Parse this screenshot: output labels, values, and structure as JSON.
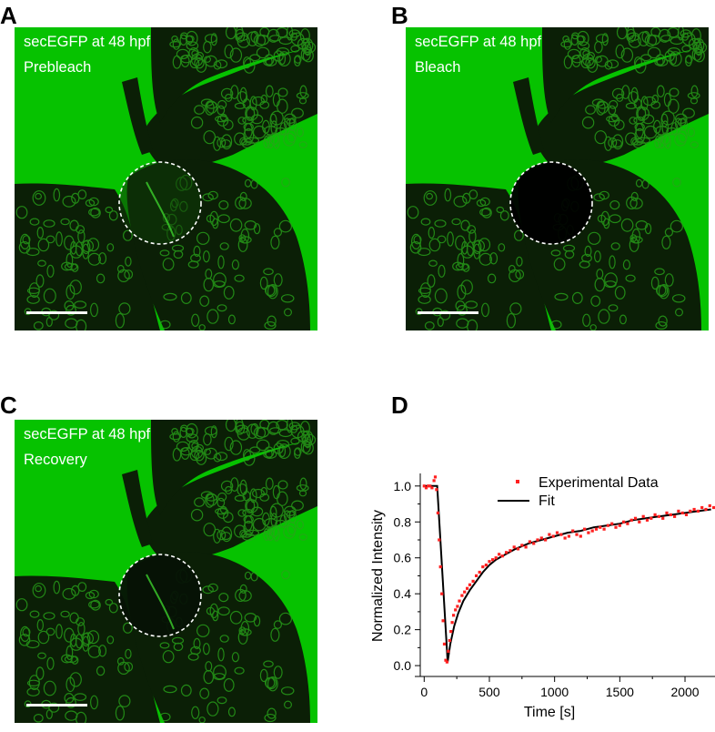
{
  "panels": [
    {
      "letter": "A",
      "line1": "secEGFP at 48 hpf",
      "line2": "Prebleach",
      "state": "prebleach"
    },
    {
      "letter": "B",
      "line1": "secEGFP at 48 hpf",
      "line2": "Bleach",
      "state": "bleach"
    },
    {
      "letter": "C",
      "line1": "secEGFP at 48 hpf",
      "line2": "Recovery",
      "state": "recovery"
    },
    {
      "letter": "D"
    }
  ],
  "colors": {
    "gfp": "#06c200",
    "tissue": "#0b1f06",
    "membrane": "#28a31a",
    "data": "#ff2020",
    "fit": "#000000"
  },
  "chart_data": {
    "type": "scatter",
    "xlabel": "Time [s]",
    "ylabel": "Normalized Intensity",
    "xlim": [
      -30,
      2230
    ],
    "ylim": [
      -0.03,
      1.07
    ],
    "xticks": [
      "0",
      "500",
      "1000",
      "1500",
      "2000"
    ],
    "yticks": [
      "0.0",
      "0.2",
      "0.4",
      "0.6",
      "0.8",
      "1.0"
    ],
    "legend_position": "top-right",
    "series": [
      {
        "name": "Experimental Data",
        "style": "dots",
        "x": [
          0,
          15,
          30,
          45,
          60,
          75,
          85,
          95,
          105,
          115,
          125,
          135,
          145,
          155,
          165,
          175,
          185,
          195,
          205,
          215,
          225,
          240,
          255,
          270,
          290,
          310,
          330,
          350,
          375,
          400,
          425,
          450,
          475,
          500,
          525,
          550,
          575,
          600,
          630,
          660,
          690,
          720,
          750,
          780,
          810,
          840,
          870,
          900,
          930,
          960,
          990,
          1020,
          1050,
          1080,
          1110,
          1140,
          1170,
          1200,
          1230,
          1260,
          1290,
          1320,
          1350,
          1380,
          1410,
          1440,
          1470,
          1500,
          1530,
          1560,
          1590,
          1620,
          1650,
          1680,
          1710,
          1740,
          1770,
          1800,
          1830,
          1860,
          1890,
          1920,
          1950,
          1980,
          2010,
          2040,
          2070,
          2100,
          2130,
          2160,
          2190,
          2220
        ],
        "y": [
          1.0,
          0.99,
          1.0,
          1.0,
          0.99,
          1.03,
          1.05,
          0.98,
          0.85,
          0.7,
          0.55,
          0.4,
          0.25,
          0.12,
          0.03,
          0.02,
          0.08,
          0.14,
          0.19,
          0.24,
          0.28,
          0.31,
          0.33,
          0.36,
          0.39,
          0.41,
          0.43,
          0.45,
          0.47,
          0.5,
          0.52,
          0.55,
          0.56,
          0.58,
          0.59,
          0.6,
          0.62,
          0.61,
          0.63,
          0.64,
          0.66,
          0.65,
          0.67,
          0.66,
          0.69,
          0.68,
          0.7,
          0.71,
          0.7,
          0.73,
          0.72,
          0.74,
          0.73,
          0.71,
          0.72,
          0.75,
          0.73,
          0.72,
          0.76,
          0.74,
          0.75,
          0.76,
          0.77,
          0.76,
          0.78,
          0.79,
          0.77,
          0.78,
          0.8,
          0.79,
          0.81,
          0.82,
          0.8,
          0.83,
          0.81,
          0.82,
          0.84,
          0.83,
          0.82,
          0.85,
          0.84,
          0.83,
          0.86,
          0.85,
          0.84,
          0.86,
          0.87,
          0.86,
          0.88,
          0.87,
          0.89,
          0.88
        ]
      },
      {
        "name": "Fit",
        "style": "line",
        "x": [
          0,
          100,
          180,
          200,
          230,
          260,
          300,
          350,
          400,
          450,
          500,
          550,
          600,
          700,
          800,
          900,
          1000,
          1100,
          1200,
          1300,
          1400,
          1500,
          1600,
          1700,
          1800,
          1900,
          2000,
          2100,
          2200
        ],
        "y": [
          1.0,
          1.0,
          0.02,
          0.12,
          0.22,
          0.29,
          0.36,
          0.42,
          0.47,
          0.52,
          0.56,
          0.59,
          0.61,
          0.65,
          0.68,
          0.7,
          0.72,
          0.74,
          0.75,
          0.77,
          0.78,
          0.79,
          0.81,
          0.82,
          0.83,
          0.84,
          0.85,
          0.86,
          0.87
        ]
      }
    ]
  }
}
